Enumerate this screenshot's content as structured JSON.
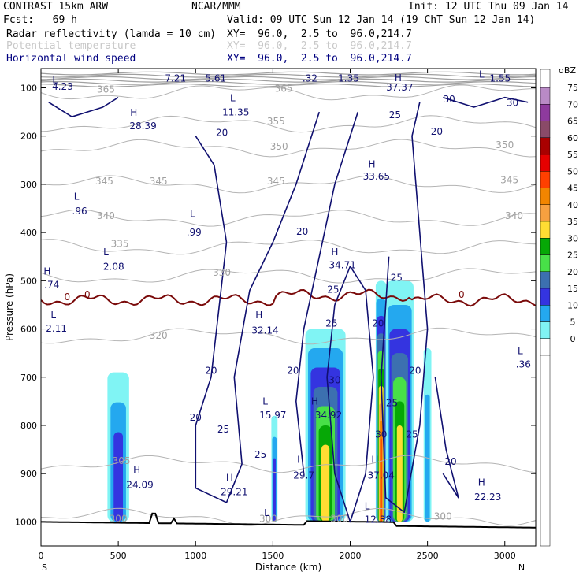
{
  "header": {
    "left1": "CONTRAST 15km ARW",
    "center1": "NCAR/MMM",
    "right1": "Init: 12 UTC Thu 09 Jan 14",
    "left2": "Fcst:   69 h",
    "right2": "Valid: 09 UTC Sun 12 Jan 14 (19 ChT Sun 12 Jan 14)",
    "field1": "Radar reflectivity (lamda = 10 cm)",
    "field1_xy": "XY=  96.0,  2.5 to  96.0,214.7",
    "field2": "Potential temperature",
    "field2_xy": "XY=  96.0,  2.5 to  96.0,214.7",
    "field3": "Horizontal wind speed",
    "field3_xy": "XY=  96.0,  2.5 to  96.0,214.7"
  },
  "chart_data": {
    "type": "cross-section",
    "xlabel": "Distance (km)",
    "ylabel": "Pressure (hPa)",
    "xlim": [
      0,
      3200
    ],
    "ylim": [
      1050,
      60
    ],
    "x_ticks": [
      "0",
      "500",
      "1000",
      "1500",
      "2000",
      "2500",
      "3000"
    ],
    "x_tick_values": [
      0,
      500,
      1000,
      1500,
      2000,
      2500,
      3000
    ],
    "x_end_left": "S",
    "x_end_right": "N",
    "y_ticks": [
      "100",
      "200",
      "300",
      "400",
      "500",
      "600",
      "700",
      "800",
      "900",
      "1000"
    ],
    "y_tick_values": [
      100,
      200,
      300,
      400,
      500,
      600,
      700,
      800,
      900,
      1000
    ],
    "colorbar": {
      "unit": "dBZ",
      "levels": [
        "75",
        "70",
        "65",
        "60",
        "55",
        "50",
        "45",
        "40",
        "35",
        "30",
        "25",
        "20",
        "15",
        "10",
        "5",
        "0"
      ],
      "colors": [
        "#b98ac6",
        "#8e3a9e",
        "#8a4a68",
        "#a90000",
        "#e60000",
        "#ff4000",
        "#f28500",
        "#f7a040",
        "#ffdd33",
        "#06a806",
        "#48e048",
        "#3c70b0",
        "#3434e0",
        "#24a8ef",
        "#80f4f4",
        "#ffffff"
      ]
    },
    "reflectivity_cells": [
      {
        "x": 500,
        "width": 140,
        "top": 690,
        "levels": [
          5,
          10,
          15
        ]
      },
      {
        "x": 1510,
        "width": 40,
        "top": 780,
        "levels": [
          5,
          10,
          15
        ]
      },
      {
        "x": 1840,
        "width": 260,
        "top": 600,
        "levels": [
          5,
          10,
          15,
          20,
          25,
          30,
          35
        ]
      },
      {
        "x": 2200,
        "width": 70,
        "top": 500,
        "levels": [
          5,
          10,
          15,
          20,
          25,
          30,
          35,
          40,
          45,
          50
        ]
      },
      {
        "x": 2320,
        "width": 180,
        "top": 500,
        "levels": [
          5,
          10,
          15,
          20,
          25,
          30,
          35
        ]
      },
      {
        "x": 2500,
        "width": 50,
        "top": 640,
        "levels": [
          5,
          10
        ]
      }
    ],
    "theta_isentropes": [
      {
        "value": "365",
        "pressure": 110
      },
      {
        "value": "355",
        "pressure": 175
      },
      {
        "value": "350",
        "pressure": 225
      },
      {
        "value": "345",
        "pressure": 300
      },
      {
        "value": "340",
        "pressure": 370
      },
      {
        "value": "335",
        "pressure": 430
      },
      {
        "value": "330",
        "pressure": 490
      },
      {
        "value": "320",
        "pressure": 615
      },
      {
        "value": "305",
        "pressure": 880
      },
      {
        "value": "300",
        "pressure": 990
      }
    ],
    "theta_labels": [
      {
        "text": "365",
        "x": 420,
        "p": 110
      },
      {
        "text": "365",
        "x": 1570,
        "p": 108
      },
      {
        "text": "355",
        "x": 1520,
        "p": 176
      },
      {
        "text": "350",
        "x": 1540,
        "p": 228
      },
      {
        "text": "350",
        "x": 3000,
        "p": 225
      },
      {
        "text": "345",
        "x": 410,
        "p": 300
      },
      {
        "text": "345",
        "x": 760,
        "p": 300
      },
      {
        "text": "345",
        "x": 1520,
        "p": 300
      },
      {
        "text": "345",
        "x": 3030,
        "p": 298
      },
      {
        "text": "340",
        "x": 420,
        "p": 372
      },
      {
        "text": "340",
        "x": 3060,
        "p": 372
      },
      {
        "text": "335",
        "x": 510,
        "p": 430
      },
      {
        "text": "330",
        "x": 1170,
        "p": 490
      },
      {
        "text": "320",
        "x": 760,
        "p": 620
      },
      {
        "text": "305",
        "x": 520,
        "p": 880
      },
      {
        "text": "300",
        "x": 500,
        "p": 1000
      },
      {
        "text": "300",
        "x": 1470,
        "p": 1000
      },
      {
        "text": "300",
        "x": 1930,
        "p": 1000
      },
      {
        "text": "300",
        "x": 2600,
        "p": 995
      },
      {
        "text": "0",
        "x": 170,
        "p": 540
      },
      {
        "text": "0",
        "x": 300,
        "p": 535
      },
      {
        "text": "0",
        "x": 2720,
        "p": 535
      }
    ],
    "wind_labels": [
      {
        "text": "L",
        "x": 90,
        "p": 90
      },
      {
        "text": "4.23",
        "x": 140,
        "p": 104
      },
      {
        "text": "7.21",
        "x": 870,
        "p": 87
      },
      {
        "text": "5.61",
        "x": 1130,
        "p": 87
      },
      {
        "text": ".32",
        "x": 1740,
        "p": 87
      },
      {
        "text": "1.35",
        "x": 1990,
        "p": 87
      },
      {
        "text": "H",
        "x": 2310,
        "p": 86
      },
      {
        "text": "L",
        "x": 2850,
        "p": 79
      },
      {
        "text": "1.55",
        "x": 2970,
        "p": 87
      },
      {
        "text": "37.37",
        "x": 2320,
        "p": 106
      },
      {
        "text": "L",
        "x": 1240,
        "p": 128
      },
      {
        "text": "11.35",
        "x": 1260,
        "p": 157
      },
      {
        "text": "H",
        "x": 600,
        "p": 158
      },
      {
        "text": "28.39",
        "x": 660,
        "p": 186
      },
      {
        "text": "20",
        "x": 1170,
        "p": 200
      },
      {
        "text": "30",
        "x": 2640,
        "p": 130
      },
      {
        "text": "30",
        "x": 3050,
        "p": 138
      },
      {
        "text": "25",
        "x": 2290,
        "p": 163
      },
      {
        "text": "20",
        "x": 2560,
        "p": 197
      },
      {
        "text": "H",
        "x": 2140,
        "p": 265
      },
      {
        "text": "33.65",
        "x": 2170,
        "p": 290
      },
      {
        "text": "L",
        "x": 230,
        "p": 332
      },
      {
        "text": ".96",
        "x": 250,
        "p": 362
      },
      {
        "text": "L",
        "x": 980,
        "p": 368
      },
      {
        "text": ".99",
        "x": 990,
        "p": 406
      },
      {
        "text": "20",
        "x": 1690,
        "p": 405
      },
      {
        "text": "L",
        "x": 420,
        "p": 447
      },
      {
        "text": "2.08",
        "x": 470,
        "p": 477
      },
      {
        "text": "H",
        "x": 1900,
        "p": 447
      },
      {
        "text": "34.71",
        "x": 1950,
        "p": 474
      },
      {
        "text": "H",
        "x": 40,
        "p": 487
      },
      {
        "text": ".74",
        "x": 70,
        "p": 515
      },
      {
        "text": "25",
        "x": 1890,
        "p": 525
      },
      {
        "text": "25",
        "x": 2300,
        "p": 500
      },
      {
        "text": "L",
        "x": 80,
        "p": 578
      },
      {
        "text": "2.11",
        "x": 100,
        "p": 606
      },
      {
        "text": "H",
        "x": 1410,
        "p": 578
      },
      {
        "text": "32.14",
        "x": 1450,
        "p": 610
      },
      {
        "text": "25",
        "x": 1880,
        "p": 595
      },
      {
        "text": "20",
        "x": 2180,
        "p": 595
      },
      {
        "text": "L",
        "x": 3100,
        "p": 652
      },
      {
        "text": ".36",
        "x": 3120,
        "p": 680
      },
      {
        "text": "20",
        "x": 1630,
        "p": 693
      },
      {
        "text": "20",
        "x": 1100,
        "p": 693
      },
      {
        "text": "30",
        "x": 1900,
        "p": 713
      },
      {
        "text": "20",
        "x": 2420,
        "p": 693
      },
      {
        "text": "H",
        "x": 1770,
        "p": 757
      },
      {
        "text": "34.92",
        "x": 1860,
        "p": 785
      },
      {
        "text": "L",
        "x": 1450,
        "p": 757
      },
      {
        "text": "15.97",
        "x": 1500,
        "p": 785
      },
      {
        "text": "25",
        "x": 2270,
        "p": 760
      },
      {
        "text": "20",
        "x": 1000,
        "p": 790
      },
      {
        "text": "25",
        "x": 1180,
        "p": 815
      },
      {
        "text": "30",
        "x": 2200,
        "p": 825
      },
      {
        "text": "25",
        "x": 2400,
        "p": 825
      },
      {
        "text": "25",
        "x": 1420,
        "p": 867
      },
      {
        "text": "H",
        "x": 1680,
        "p": 878
      },
      {
        "text": "29.7",
        "x": 1700,
        "p": 910
      },
      {
        "text": "H",
        "x": 2160,
        "p": 878
      },
      {
        "text": "37.04",
        "x": 2200,
        "p": 910
      },
      {
        "text": "20",
        "x": 2650,
        "p": 882
      },
      {
        "text": "H",
        "x": 620,
        "p": 900
      },
      {
        "text": "24.09",
        "x": 640,
        "p": 930
      },
      {
        "text": "H",
        "x": 1220,
        "p": 915
      },
      {
        "text": "29.21",
        "x": 1250,
        "p": 945
      },
      {
        "text": "H",
        "x": 2850,
        "p": 925
      },
      {
        "text": "22.23",
        "x": 2890,
        "p": 955
      },
      {
        "text": "L",
        "x": 1460,
        "p": 988
      },
      {
        "text": "L",
        "x": 2110,
        "p": 974
      },
      {
        "text": "12.38",
        "x": 2180,
        "p": 1002
      }
    ]
  }
}
